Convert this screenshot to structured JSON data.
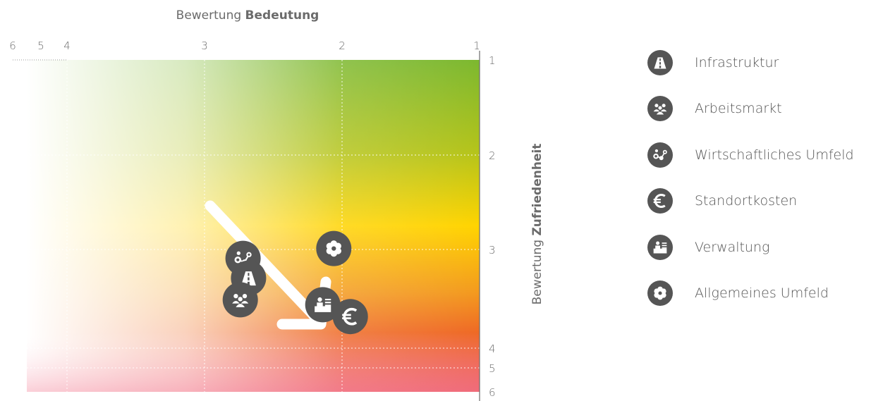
{
  "chart_data": {
    "type": "scatter",
    "xlabel_normal": "Bewertung",
    "xlabel_bold": "Bedeutung",
    "ylabel_normal": "Bewertung",
    "ylabel_bold": "Zufriedenheit",
    "x_ticks": [
      "6",
      "5",
      "4",
      "3",
      "2",
      "1"
    ],
    "y_ticks": [
      "1",
      "2",
      "3",
      "4",
      "5",
      "6"
    ],
    "points": [
      {
        "name": "Wirtschaftliches Umfeld",
        "icon": "network-icon",
        "x": 2.72,
        "y": 3.09
      },
      {
        "name": "Infrastruktur",
        "icon": "road-icon",
        "x": 2.68,
        "y": 3.29
      },
      {
        "name": "Arbeitsmarkt",
        "icon": "people-icon",
        "x": 2.74,
        "y": 3.51
      },
      {
        "name": "Allgemeines Umfeld",
        "icon": "flower-icon",
        "x": 2.06,
        "y": 2.99
      },
      {
        "name": "Verwaltung",
        "icon": "office-icon",
        "x": 2.14,
        "y": 3.56
      },
      {
        "name": "Standortkosten",
        "icon": "euro-icon",
        "x": 1.94,
        "y": 3.68
      }
    ],
    "gradient_colors": {
      "top_right": "#7cb82f",
      "middle_right": "#ffd400",
      "bottom_right": "#e8212e",
      "left": "#ffffff"
    }
  },
  "legend": [
    {
      "label": "Infrastruktur",
      "icon": "road-icon"
    },
    {
      "label": "Arbeitsmarkt",
      "icon": "people-icon"
    },
    {
      "label": "Wirtschaftliches Umfeld",
      "icon": "network-icon"
    },
    {
      "label": "Standortkosten",
      "icon": "euro-icon"
    },
    {
      "label": "Verwaltung",
      "icon": "office-icon"
    },
    {
      "label": "Allgemeines Umfeld",
      "icon": "flower-icon"
    }
  ]
}
